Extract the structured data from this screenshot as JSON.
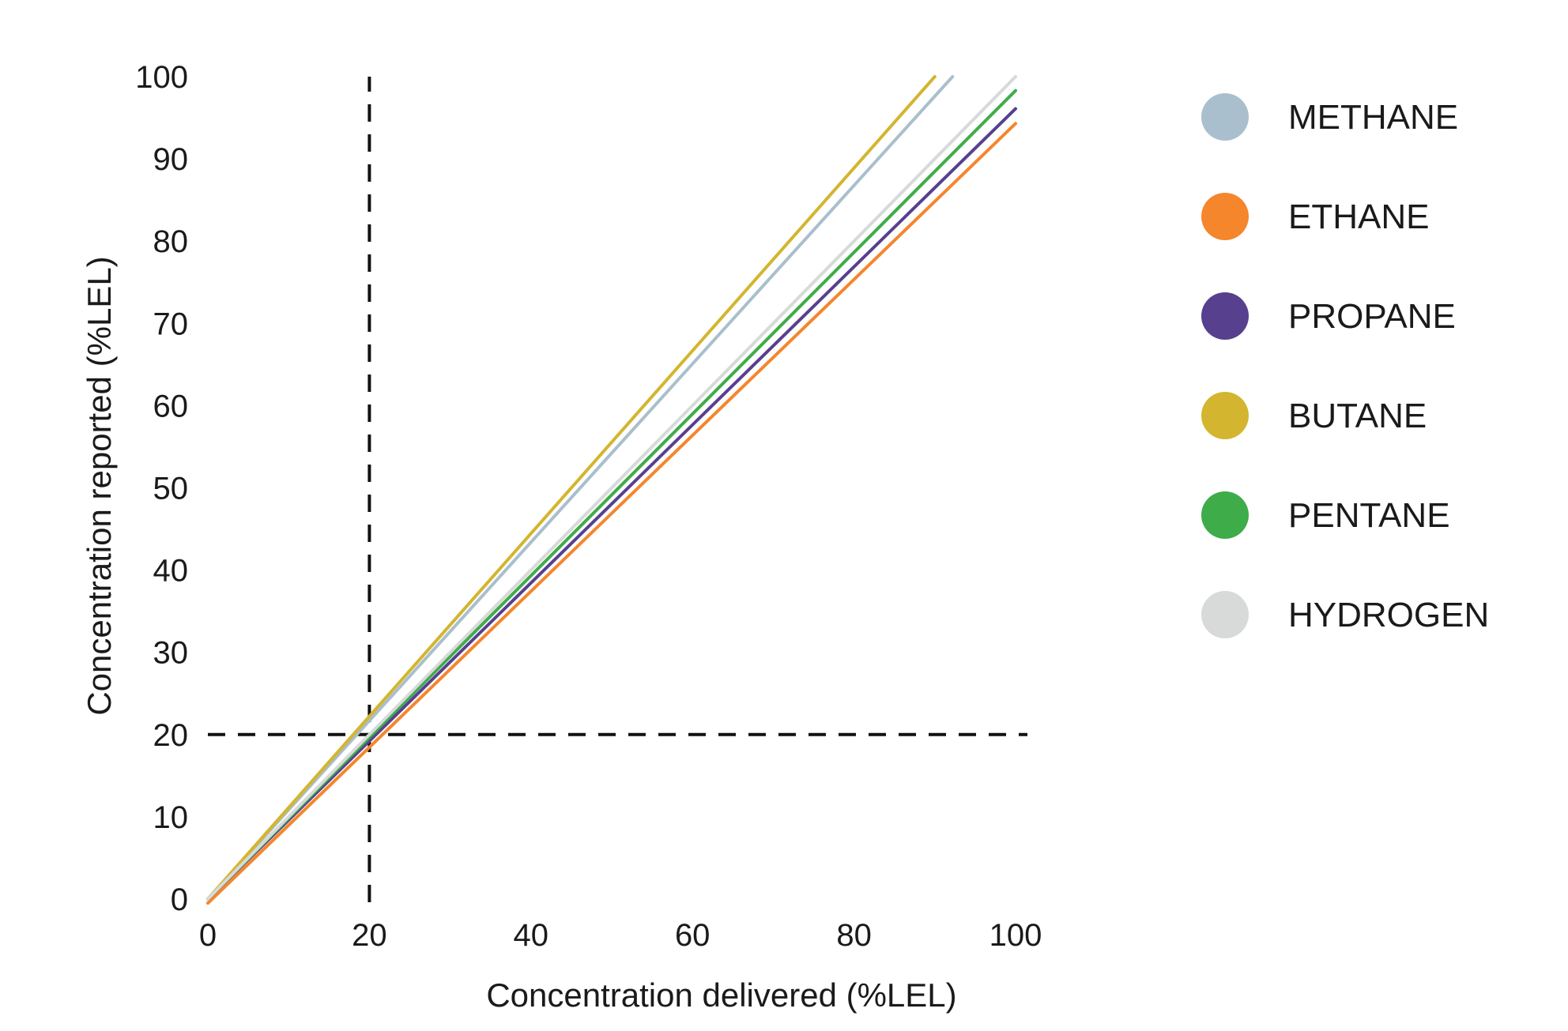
{
  "chart_data": {
    "type": "line",
    "xlabel": "Concentration delivered (%LEL)",
    "ylabel": "Concentration reported (%LEL)",
    "xlim": [
      0,
      100
    ],
    "ylim": [
      0,
      100
    ],
    "x_ticks": [
      "0",
      "20",
      "40",
      "60",
      "80",
      "100"
    ],
    "y_ticks": [
      "0",
      "10",
      "20",
      "30",
      "40",
      "50",
      "60",
      "70",
      "80",
      "90",
      "100"
    ],
    "grid": false,
    "legend_position": "right",
    "reference_lines": [
      {
        "orientation": "vertical",
        "x": 20,
        "y_range": [
          0,
          100
        ],
        "style": "dashed"
      },
      {
        "orientation": "horizontal",
        "y": 20,
        "x_range": [
          0,
          100
        ],
        "style": "dashed"
      }
    ],
    "series": [
      {
        "name": "METHANE",
        "color": "#a9bfcd",
        "x": [
          0,
          92.2
        ],
        "y": [
          0,
          100
        ]
      },
      {
        "name": "ETHANE",
        "color": "#f5862c",
        "x": [
          0,
          100
        ],
        "y": [
          -0.5,
          94.3
        ]
      },
      {
        "name": "PROPANE",
        "color": "#57408e",
        "x": [
          0,
          100
        ],
        "y": [
          0,
          96.1
        ]
      },
      {
        "name": "BUTANE",
        "color": "#d3b52f",
        "x": [
          0,
          90
        ],
        "y": [
          0,
          100
        ]
      },
      {
        "name": "PENTANE",
        "color": "#3fac4a",
        "x": [
          0,
          100
        ],
        "y": [
          0,
          98.3
        ]
      },
      {
        "name": "HYDROGEN",
        "color": "#d8d9d9",
        "x": [
          0,
          100
        ],
        "y": [
          0,
          100
        ]
      }
    ]
  }
}
